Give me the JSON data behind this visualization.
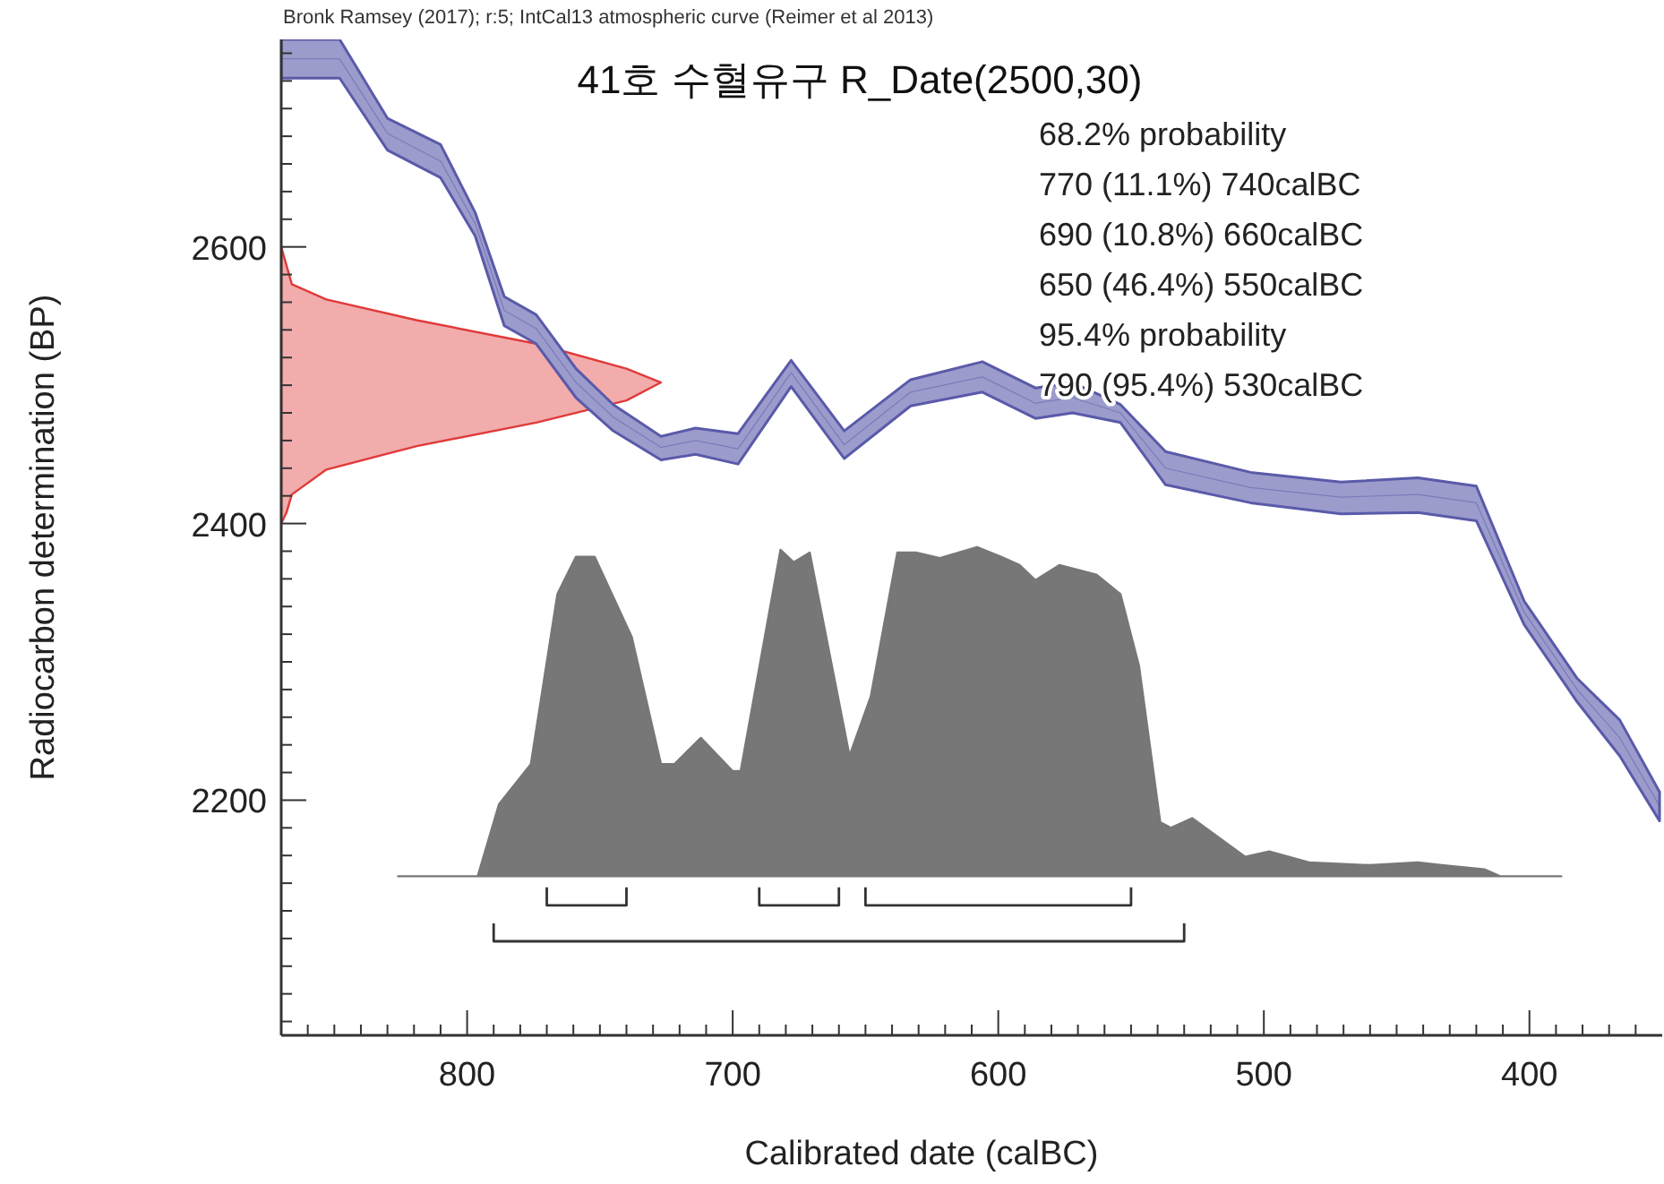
{
  "chart_data": {
    "type": "line",
    "title": "41호 수혈유구 R_Date(2500,30)",
    "xlabel": "Calibrated date (calBC)",
    "ylabel": "Radiocarbon determination (BP)",
    "annotations": [
      "Bronk Ramsey (2017); r:5; IntCal13 atmospheric curve (Reimer et al 2013)",
      "68.2% probability",
      "770 (11.1%) 740calBC",
      "690 (10.8%) 660calBC",
      "650 (46.4%) 550calBC",
      "95.4% probability",
      "790 (95.4%) 530calBC"
    ],
    "xlim": [
      870,
      350
    ],
    "ylim": [
      2030,
      2750
    ],
    "xticks": [
      {
        "value": 860,
        "label": null
      },
      {
        "value": 850,
        "label": null
      },
      {
        "value": 840,
        "label": null
      },
      {
        "value": 830,
        "label": null
      },
      {
        "value": 820,
        "label": null
      },
      {
        "value": 810,
        "label": null
      },
      800,
      {
        "value": 790,
        "label": null
      },
      {
        "value": 780,
        "label": null
      },
      {
        "value": 770,
        "label": null
      },
      {
        "value": 760,
        "label": null
      },
      {
        "value": 750,
        "label": null
      },
      {
        "value": 740,
        "label": null
      },
      {
        "value": 730,
        "label": null
      },
      {
        "value": 720,
        "label": null
      },
      {
        "value": 710,
        "label": null
      },
      700,
      {
        "value": 690,
        "label": null
      },
      {
        "value": 680,
        "label": null
      },
      {
        "value": 670,
        "label": null
      },
      {
        "value": 660,
        "label": null
      },
      {
        "value": 650,
        "label": null
      },
      {
        "value": 640,
        "label": null
      },
      {
        "value": 630,
        "label": null
      },
      {
        "value": 620,
        "label": null
      },
      {
        "value": 610,
        "label": null
      },
      600,
      {
        "value": 590,
        "label": null
      },
      {
        "value": 580,
        "label": null
      },
      {
        "value": 570,
        "label": null
      },
      {
        "value": 560,
        "label": null
      },
      {
        "value": 550,
        "label": null
      },
      {
        "value": 540,
        "label": null
      },
      {
        "value": 530,
        "label": null
      },
      {
        "value": 520,
        "label": null
      },
      {
        "value": 510,
        "label": null
      },
      500,
      {
        "value": 490,
        "label": null
      },
      {
        "value": 480,
        "label": null
      },
      {
        "value": 470,
        "label": null
      },
      {
        "value": 460,
        "label": null
      },
      {
        "value": 450,
        "label": null
      },
      {
        "value": 440,
        "label": null
      },
      {
        "value": 430,
        "label": null
      },
      {
        "value": 420,
        "label": null
      },
      {
        "value": 410,
        "label": null
      },
      400,
      {
        "value": 390,
        "label": null
      },
      {
        "value": 380,
        "label": null
      },
      {
        "value": 370,
        "label": null
      },
      {
        "value": 360,
        "label": null
      }
    ],
    "yticks": [
      {
        "value": 2040,
        "label": null
      },
      {
        "value": 2060,
        "label": null
      },
      {
        "value": 2080,
        "label": null
      },
      {
        "value": 2100,
        "label": null
      },
      {
        "value": 2120,
        "label": null
      },
      {
        "value": 2140,
        "label": null
      },
      {
        "value": 2160,
        "label": null
      },
      {
        "value": 2180,
        "label": null
      },
      2200,
      {
        "value": 2220,
        "label": null
      },
      {
        "value": 2240,
        "label": null
      },
      {
        "value": 2260,
        "label": null
      },
      {
        "value": 2280,
        "label": null
      },
      {
        "value": 2300,
        "label": null
      },
      {
        "value": 2320,
        "label": null
      },
      {
        "value": 2340,
        "label": null
      },
      {
        "value": 2360,
        "label": null
      },
      {
        "value": 2380,
        "label": null
      },
      2400,
      {
        "value": 2420,
        "label": null
      },
      {
        "value": 2440,
        "label": null
      },
      {
        "value": 2460,
        "label": null
      },
      {
        "value": 2480,
        "label": null
      },
      {
        "value": 2500,
        "label": null
      },
      {
        "value": 2520,
        "label": null
      },
      {
        "value": 2540,
        "label": null
      },
      {
        "value": 2560,
        "label": null
      },
      {
        "value": 2580,
        "label": null
      },
      2600,
      {
        "value": 2620,
        "label": null
      },
      {
        "value": 2640,
        "label": null
      },
      {
        "value": 2660,
        "label": null
      },
      {
        "value": 2680,
        "label": null
      },
      {
        "value": 2700,
        "label": null
      },
      {
        "value": 2720,
        "label": null
      },
      {
        "value": 2740,
        "label": null
      }
    ],
    "grid": false,
    "marker": "none",
    "line_style": "solid",
    "series": [
      {
        "color": "#5a5aaa",
        "x": [
          870,
          848,
          830,
          810,
          797,
          786,
          774,
          759,
          745,
          727,
          714,
          698,
          678,
          658,
          633,
          606,
          586,
          572,
          554,
          537,
          505,
          471,
          442,
          420,
          402,
          382,
          366,
          351
        ],
        "values": [
          2736,
          2736,
          2682,
          2662,
          2617,
          2554,
          2541,
          2502,
          2477,
          2455,
          2460,
          2454,
          2509,
          2457,
          2495,
          2506,
          2487,
          2491,
          2480,
          2440,
          2426,
          2419,
          2421,
          2415,
          2336,
          2280,
          2245,
          2196
        ],
        "lower": [
          2722,
          2722,
          2670,
          2650,
          2608,
          2543,
          2530,
          2491,
          2467,
          2446,
          2450,
          2443,
          2499,
          2447,
          2485,
          2495,
          2476,
          2480,
          2473,
          2428,
          2415,
          2407,
          2408,
          2402,
          2327,
          2271,
          2232,
          2185
        ],
        "upper": [
          2750,
          2750,
          2693,
          2674,
          2625,
          2564,
          2551,
          2512,
          2486,
          2463,
          2469,
          2465,
          2518,
          2467,
          2504,
          2517,
          2498,
          2502,
          2486,
          2452,
          2437,
          2430,
          2433,
          2427,
          2344,
          2288,
          2258,
          2206
        ]
      },
      {
        "type": "area",
        "color": "#e03a3a",
        "x": [
          870,
          866,
          853,
          819,
          774,
          740,
          727,
          740,
          774,
          819,
          853,
          866,
          868,
          870
        ],
        "values": [
          2600,
          2573,
          2562,
          2547,
          2530,
          2512,
          2502,
          2489,
          2473,
          2456,
          2439,
          2421,
          2408,
          2400
        ]
      },
      {
        "type": "area",
        "color": "#777777",
        "x": [
          826,
          796,
          788,
          776,
          766,
          759,
          752,
          738,
          727,
          722,
          712,
          700,
          697,
          682,
          677,
          671,
          656,
          648,
          638,
          631,
          622,
          608,
          599,
          592,
          586,
          577,
          563,
          554,
          547,
          539,
          535,
          527,
          507,
          498,
          483,
          460,
          442,
          433,
          417,
          411,
          388
        ],
        "values": [
          2145,
          2145,
          2197,
          2226,
          2349,
          2376,
          2376,
          2318,
          2226,
          2226,
          2245,
          2221,
          2221,
          2381,
          2372,
          2379,
          2232,
          2275,
          2379,
          2379,
          2375,
          2383,
          2376,
          2370,
          2359,
          2370,
          2363,
          2349,
          2297,
          2184,
          2180,
          2187,
          2159,
          2163,
          2155,
          2153,
          2155,
          2153,
          2150,
          2145,
          2145
        ]
      },
      {
        "color": "#333333",
        "x": [
          770,
          770,
          740,
          740
        ],
        "values": [
          2137,
          2124,
          2124,
          2137
        ]
      },
      {
        "color": "#333333",
        "x": [
          690,
          690,
          660,
          660
        ],
        "values": [
          2137,
          2124,
          2124,
          2137
        ]
      },
      {
        "color": "#333333",
        "x": [
          650,
          650,
          550,
          550
        ],
        "values": [
          2137,
          2124,
          2124,
          2137
        ]
      },
      {
        "color": "#333333",
        "x": [
          790,
          790,
          530,
          530
        ],
        "values": [
          2111,
          2098,
          2098,
          2111
        ]
      }
    ]
  }
}
